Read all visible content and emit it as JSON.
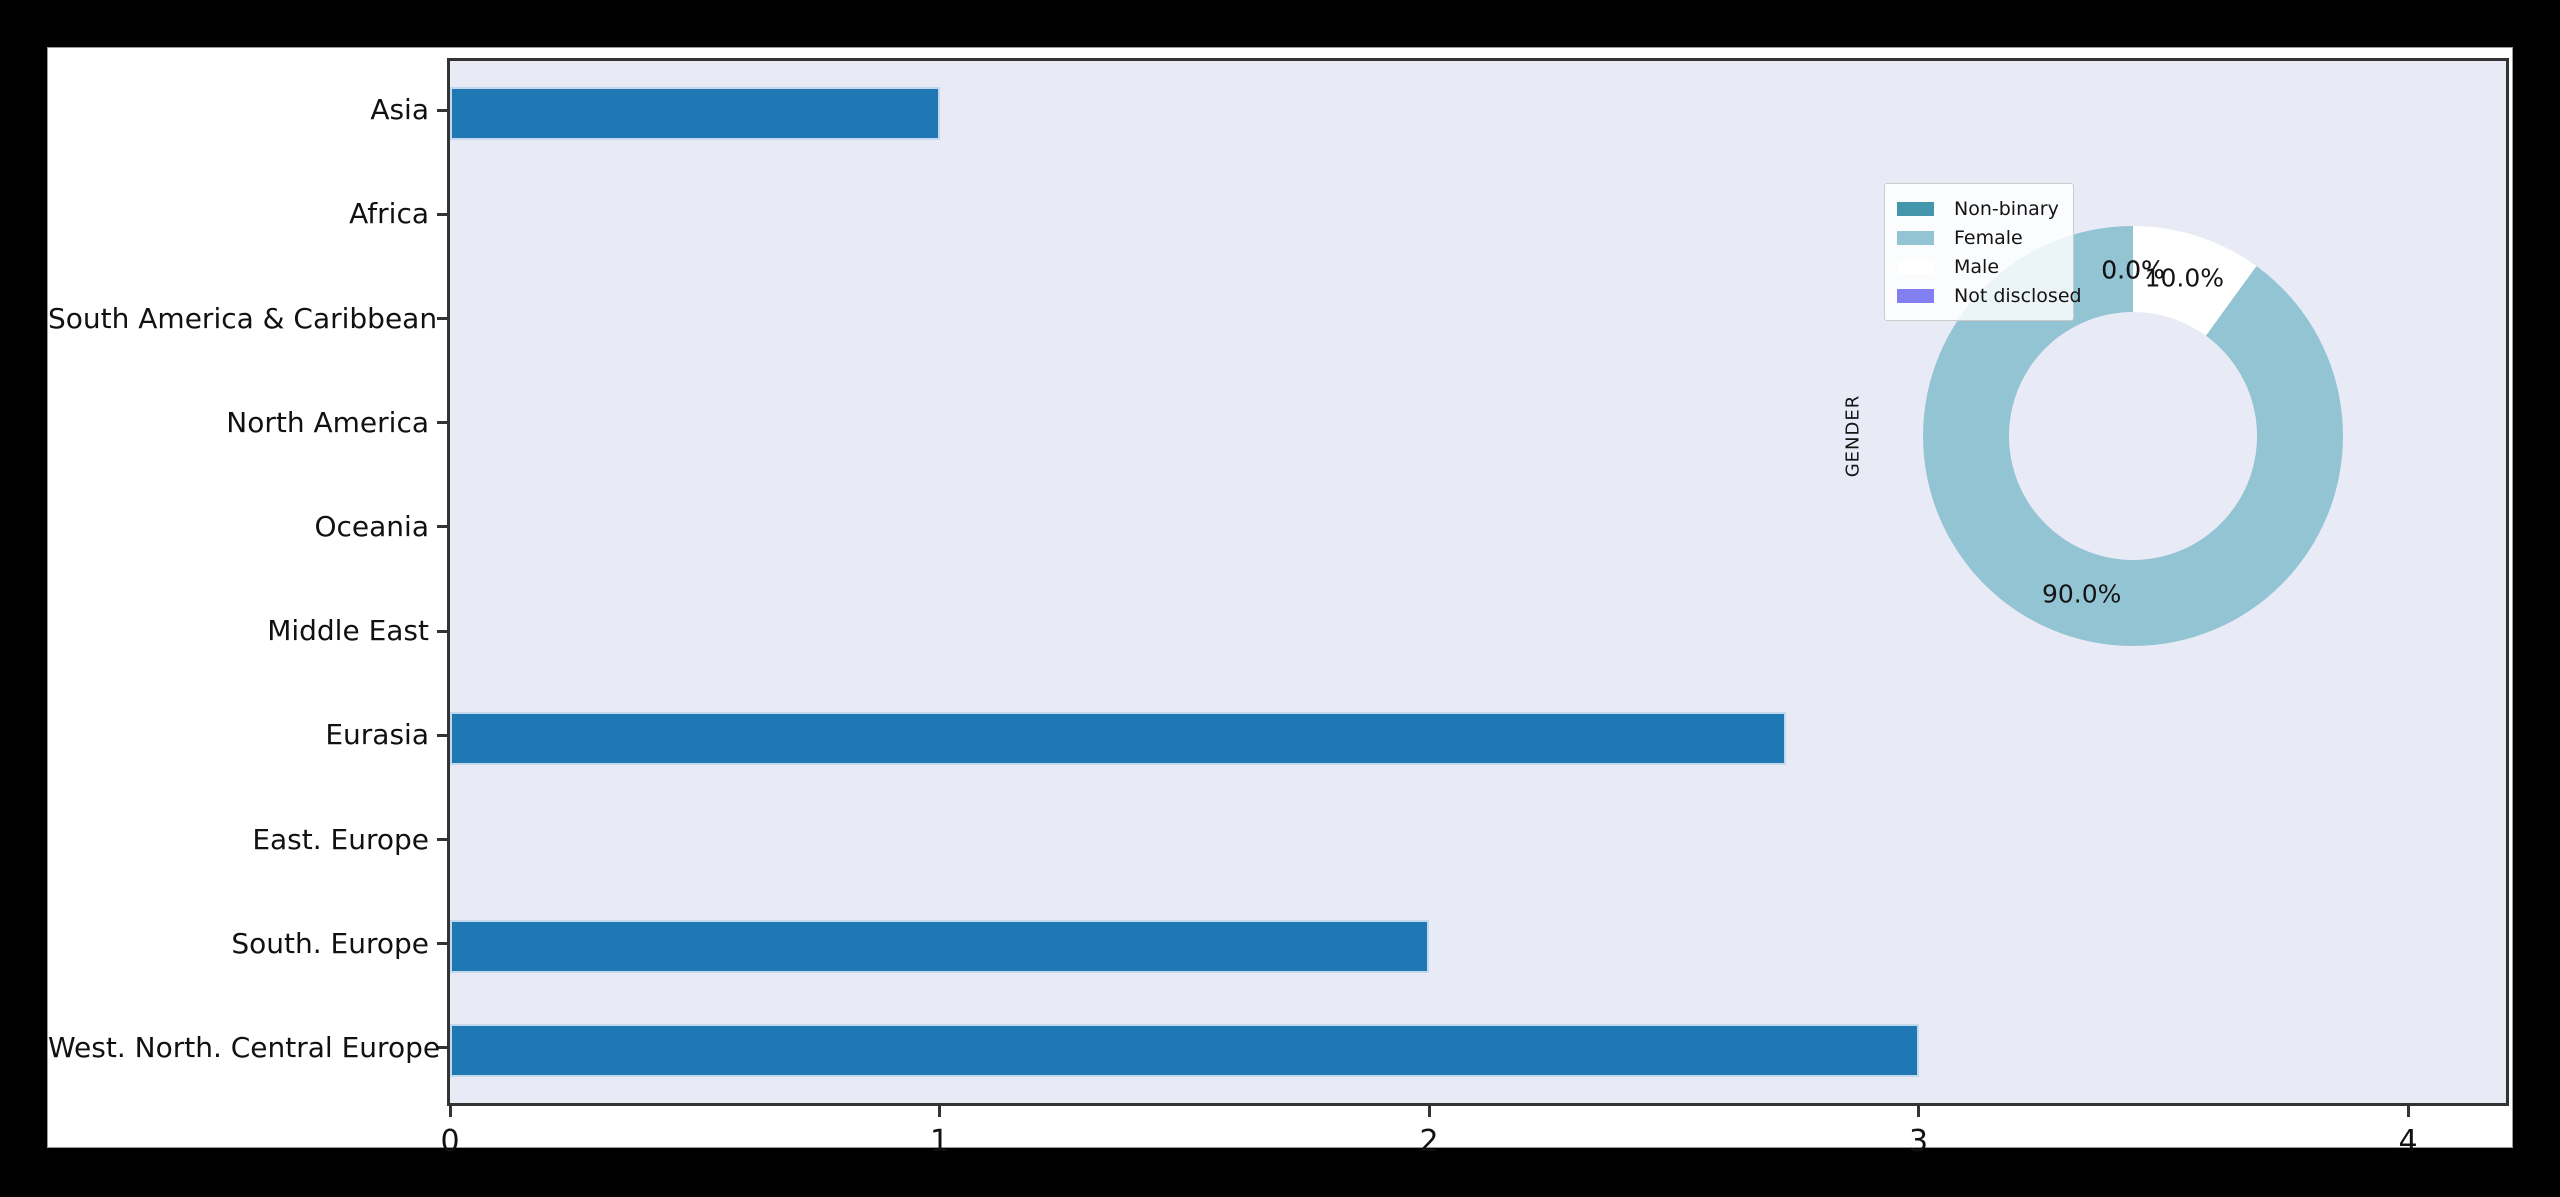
{
  "window": {
    "background_color": "#000000",
    "figure_background": "#ffffff",
    "axes_background": "#e8ebf6",
    "spine_color": "#333333"
  },
  "chart_data": [
    {
      "type": "bar",
      "orientation": "horizontal",
      "title": "",
      "xlabel": "",
      "ylabel": "",
      "categories": [
        "Asia",
        "Africa",
        "South America & Caribbean",
        "North America",
        "Oceania",
        "Middle East",
        "Eurasia",
        "East. Europe",
        "South. Europe",
        "West. North. Central Europe"
      ],
      "values": [
        1.0,
        0,
        0,
        0,
        0,
        0,
        2.73,
        0,
        2.0,
        3.0
      ],
      "xticks": [
        "0",
        "1",
        "2",
        "3",
        "4"
      ],
      "xtick_values": [
        0,
        1,
        2,
        3,
        4
      ],
      "xlim": [
        0,
        4.2
      ],
      "grid": false,
      "bar_color": "#1f77b4",
      "bar_edge_color": "#c2d8ec"
    },
    {
      "type": "pie",
      "donut": true,
      "ylabel": "GENDER",
      "start_angle": 90,
      "direction": "counterclockwise",
      "legend_position": "upper left",
      "slices": [
        {
          "label": "Non-binary",
          "value": 0.0,
          "pct_label": "0.0%",
          "color": "#4396ab"
        },
        {
          "label": "Female",
          "value": 90.0,
          "pct_label": "90.0%",
          "color": "#93c4d4"
        },
        {
          "label": "Male",
          "value": 10.0,
          "pct_label": "10.0%",
          "color": "#ffffff"
        },
        {
          "label": "Not disclosed",
          "value": 0.0,
          "pct_label": "0.0%",
          "color": "#8280f0"
        }
      ]
    }
  ]
}
